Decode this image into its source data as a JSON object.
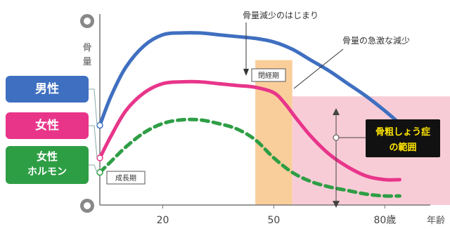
{
  "chart_data": {
    "type": "line",
    "ylabel": "骨量",
    "xlabel": "年齢",
    "x_ticks": [
      {
        "value": 20,
        "label": "20"
      },
      {
        "value": 50,
        "label": "50"
      },
      {
        "value": 80,
        "label": "80歳"
      }
    ],
    "xlim": [
      3,
      90
    ],
    "ylim": [
      0,
      100
    ],
    "series": [
      {
        "name": "男性",
        "color": "#3f6fc0",
        "style": "solid",
        "x": [
          3,
          6,
          10,
          15,
          20,
          25,
          30,
          35,
          40,
          45,
          50,
          55,
          60,
          65,
          70,
          75,
          80,
          84
        ],
        "y": [
          44,
          60,
          76,
          88,
          94,
          95,
          95,
          94,
          93,
          92,
          90,
          86,
          80,
          74,
          67,
          60,
          52,
          45
        ]
      },
      {
        "name": "女性",
        "color": "#e8358a",
        "style": "solid",
        "x": [
          3,
          6,
          10,
          15,
          20,
          25,
          30,
          35,
          40,
          45,
          50,
          53,
          56,
          60,
          65,
          70,
          75,
          80,
          84
        ],
        "y": [
          26,
          38,
          52,
          62,
          67,
          68,
          68,
          67,
          66,
          65,
          62,
          56,
          48,
          38,
          28,
          21,
          16,
          14,
          14
        ]
      },
      {
        "name": "女性ホルモン",
        "color": "#2e9e45",
        "style": "dashed",
        "x": [
          3,
          6,
          10,
          15,
          20,
          25,
          30,
          35,
          40,
          45,
          50,
          55,
          60,
          65,
          70,
          75,
          80,
          84
        ],
        "y": [
          18,
          24,
          32,
          40,
          45,
          47,
          47,
          45,
          42,
          36,
          26,
          18,
          13,
          10,
          8,
          6,
          5,
          5
        ]
      }
    ],
    "annotations": [
      {
        "text": "骨量減少のはじまり"
      },
      {
        "text": "骨量の急激な減少"
      },
      {
        "text": "閉経期"
      },
      {
        "text": "成長期"
      },
      {
        "text": "骨粗しょう症の範囲"
      }
    ],
    "legend_labels": {
      "male": "男性",
      "female": "女性",
      "hormone_line1": "女性",
      "hormone_line2": "ホルモン"
    },
    "colors": {
      "male": "#3f6fc0",
      "female": "#e8358a",
      "hormone": "#2e9e45",
      "menopause_band": "#f9c58a",
      "osteoporosis_band": "#f7c6d3",
      "osteoporosis_label_bg": "#111111",
      "osteoporosis_label_text": "#ffe600"
    }
  }
}
